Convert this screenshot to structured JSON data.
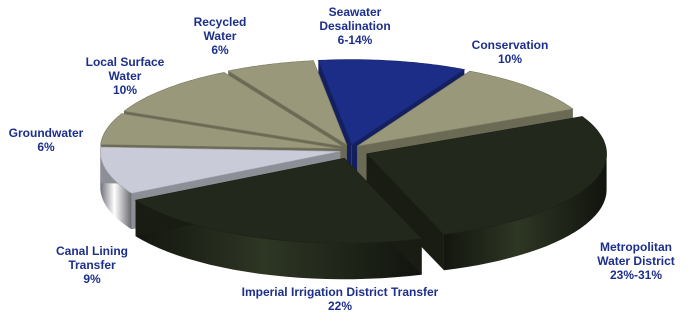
{
  "chart_data": {
    "type": "pie",
    "style": "3d-exploded",
    "colors": {
      "olive": "#99987a",
      "dark": "#22281b",
      "navy": "#1b2d86",
      "silver": "#c9ccd8",
      "text": "#1c2f8a"
    },
    "slices": [
      {
        "label": "Metropolitan Water District",
        "lines": [
          "Metropolitan",
          "Water District"
        ],
        "value_text": "23%-31%",
        "value": 27,
        "color": "dark"
      },
      {
        "label": "Imperial Irrigation District Transfer",
        "lines": [
          "Imperial Irrigation District Transfer"
        ],
        "value_text": "22%",
        "value": 22,
        "color": "dark"
      },
      {
        "label": "Canal Lining Transfer",
        "lines": [
          "Canal Lining",
          "Transfer"
        ],
        "value_text": "9%",
        "value": 9,
        "color": "silver"
      },
      {
        "label": "Groundwater",
        "lines": [
          "Groundwater"
        ],
        "value_text": "6%",
        "value": 6,
        "color": "olive"
      },
      {
        "label": "Local Surface Water",
        "lines": [
          "Local Surface",
          "Water"
        ],
        "value_text": "10%",
        "value": 10,
        "color": "olive"
      },
      {
        "label": "Recycled Water",
        "lines": [
          "Recycled",
          "Water"
        ],
        "value_text": "6%",
        "value": 6,
        "color": "olive"
      },
      {
        "label": "Seawater Desalination",
        "lines": [
          "Seawater",
          "Desalination"
        ],
        "value_text": "6-14%",
        "value": 10,
        "color": "navy"
      },
      {
        "label": "Conservation",
        "lines": [
          "Conservation"
        ],
        "value_text": "10%",
        "value": 10,
        "color": "olive"
      }
    ]
  }
}
